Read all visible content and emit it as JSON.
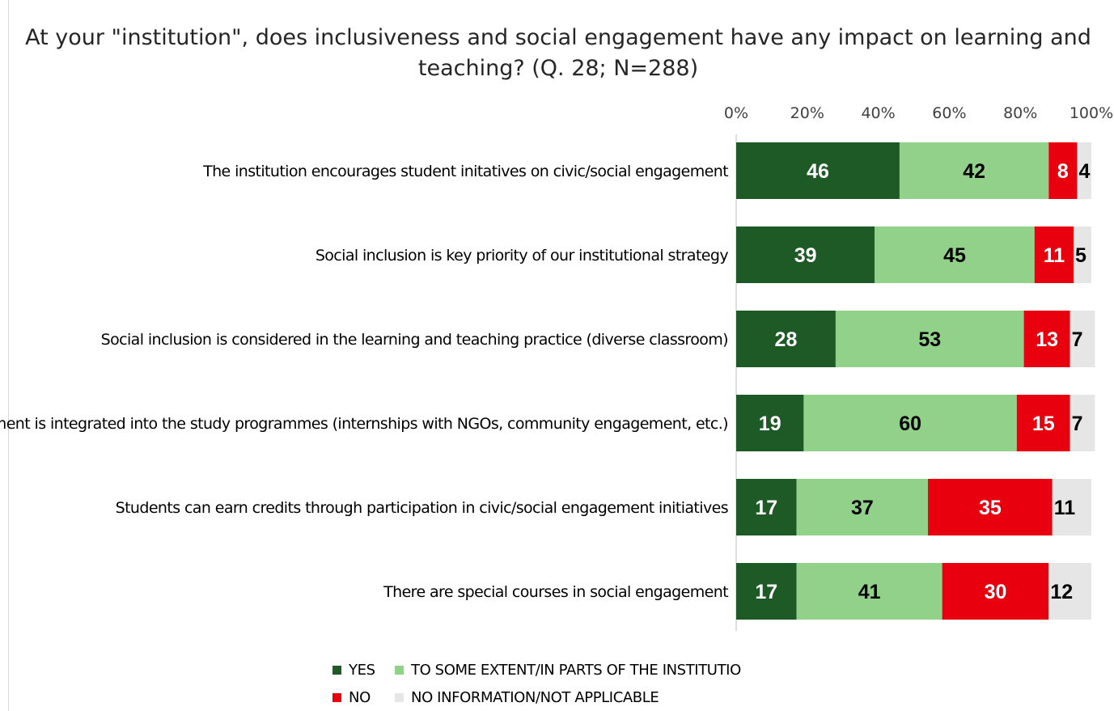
{
  "chart_data": {
    "type": "bar",
    "orientation": "horizontal",
    "stacked": true,
    "title": "At your \"institution\", does inclusiveness and social engagement have any impact on learning and teaching? (Q. 28; N=288)",
    "title_lines": [
      "At your \"institution\", does inclusiveness and social engagement have any impact on learning and",
      "teaching? (Q. 28; N=288)"
    ],
    "xlim": [
      0,
      100
    ],
    "x_ticks": [
      "0%",
      "20%",
      "40%",
      "60%",
      "80%",
      "100%"
    ],
    "x_tick_values": [
      0,
      20,
      40,
      60,
      80,
      100
    ],
    "categories": [
      "The institution encourages student initatives on civic/social engagement",
      "Social inclusion is key priority of our institutional strategy",
      "Social inclusion is considered in the learning and teaching practice (diverse classroom)",
      "Social engagement is integrated into the study programmes (internships with NGOs, community engagement, etc.)",
      "Students can earn credits through participation in civic/social engagement initiatives",
      "There are special courses in social engagement"
    ],
    "series": [
      {
        "name": "YES",
        "color": "#1e5a26",
        "label_color": "#ffffff",
        "values": [
          46,
          39,
          28,
          19,
          17,
          17
        ]
      },
      {
        "name": "TO SOME EXTENT/IN PARTS OF THE INSTITUTIO",
        "color": "#92d18a",
        "label_color": "#000000",
        "values": [
          42,
          45,
          53,
          60,
          37,
          41
        ]
      },
      {
        "name": "NO",
        "color": "#e8000f",
        "label_color": "#ffffff",
        "values": [
          8,
          11,
          13,
          15,
          35,
          30
        ]
      },
      {
        "name": "NO INFORMATION/NOT APPLICABLE",
        "color": "#e6e6e6",
        "label_color": "#000000",
        "values": [
          4,
          5,
          7,
          7,
          11,
          12
        ]
      }
    ],
    "grid": false,
    "legend_position": "bottom"
  }
}
